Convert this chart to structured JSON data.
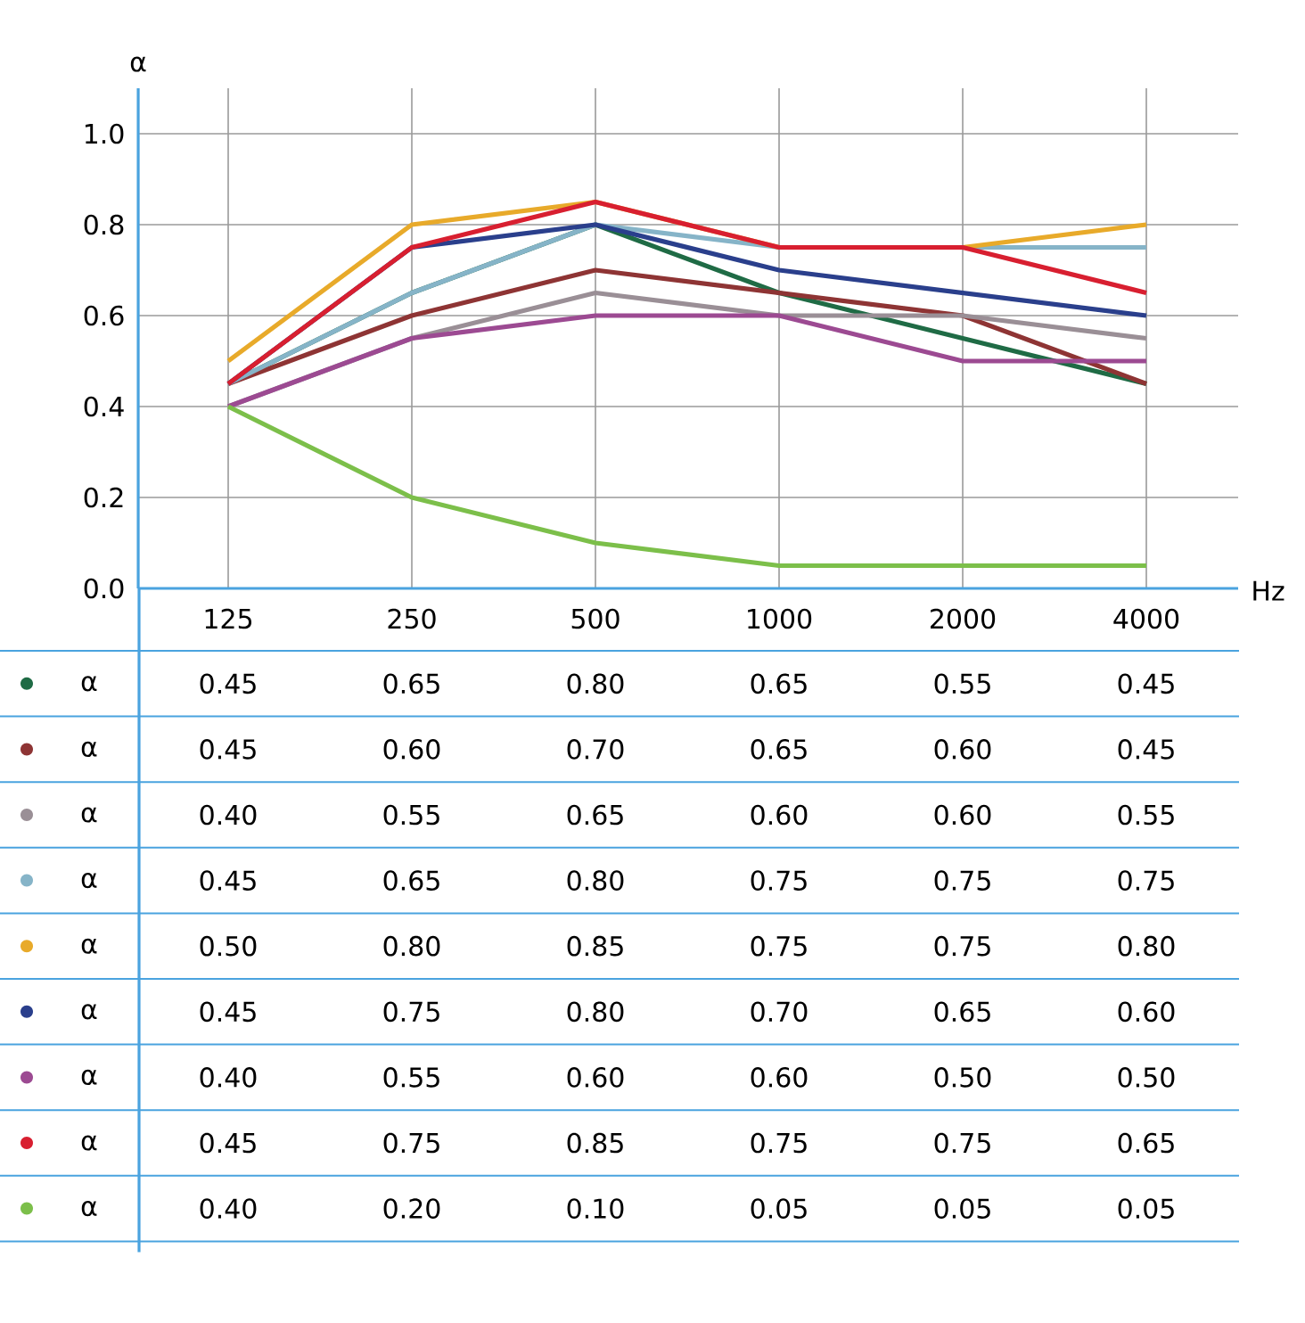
{
  "chart_data": {
    "type": "line",
    "xlabel": "Hz",
    "ylabel": "α",
    "categories": [
      "125",
      "250",
      "500",
      "1000",
      "2000",
      "4000"
    ],
    "ylim": [
      0,
      1.1
    ],
    "yticks": [
      {
        "value": 0,
        "label": "0.0"
      },
      0.2,
      0.4,
      0.6,
      0.8,
      {
        "value": 1,
        "label": "1.0"
      }
    ],
    "grid": true,
    "legend": "bottom left",
    "data_labels": true,
    "series": [
      {
        "name": "α",
        "color": "#1f6b45",
        "values": [
          0.45,
          0.65,
          0.8,
          0.65,
          0.55,
          0.45
        ],
        "value_labels": [
          "0.45",
          "0.65",
          "0.80",
          "0.65",
          "0.55",
          "0.45"
        ]
      },
      {
        "name": "α",
        "color": "#8e3434",
        "values": [
          0.45,
          0.6,
          0.7,
          0.65,
          0.6,
          0.45
        ],
        "value_labels": [
          "0.45",
          "0.60",
          "0.70",
          "0.65",
          "0.60",
          "0.45"
        ]
      },
      {
        "name": "α",
        "color": "#9a8f96",
        "values": [
          0.4,
          0.55,
          0.65,
          0.6,
          0.6,
          0.55
        ],
        "value_labels": [
          "0.40",
          "0.55",
          "0.65",
          "0.60",
          "0.60",
          "0.55"
        ]
      },
      {
        "name": "α",
        "color": "#86b4c8",
        "values": [
          0.45,
          0.65,
          0.8,
          0.75,
          0.75,
          0.75
        ],
        "value_labels": [
          "0.45",
          "0.65",
          "0.80",
          "0.75",
          "0.75",
          "0.75"
        ]
      },
      {
        "name": "α",
        "color": "#e8aa2a",
        "values": [
          0.5,
          0.8,
          0.85,
          0.75,
          0.75,
          0.8
        ],
        "value_labels": [
          "0.50",
          "0.80",
          "0.85",
          "0.75",
          "0.75",
          "0.80"
        ]
      },
      {
        "name": "α",
        "color": "#2a3f8c",
        "values": [
          0.45,
          0.75,
          0.8,
          0.7,
          0.65,
          0.6
        ],
        "value_labels": [
          "0.45",
          "0.75",
          "0.80",
          "0.70",
          "0.65",
          "0.60"
        ]
      },
      {
        "name": "α",
        "color": "#9c4a92",
        "values": [
          0.4,
          0.55,
          0.6,
          0.6,
          0.5,
          0.5
        ],
        "value_labels": [
          "0.40",
          "0.55",
          "0.60",
          "0.60",
          "0.50",
          "0.50"
        ]
      },
      {
        "name": "α",
        "color": "#d81f30",
        "values": [
          0.45,
          0.75,
          0.85,
          0.75,
          0.75,
          0.65
        ],
        "value_labels": [
          "0.45",
          "0.75",
          "0.85",
          "0.75",
          "0.75",
          "0.65"
        ]
      },
      {
        "name": "α",
        "color": "#7cbf4a",
        "values": [
          0.4,
          0.2,
          0.1,
          0.05,
          0.05,
          0.05
        ],
        "value_labels": [
          "0.40",
          "0.20",
          "0.10",
          "0.05",
          "0.05",
          "0.05"
        ]
      }
    ]
  }
}
